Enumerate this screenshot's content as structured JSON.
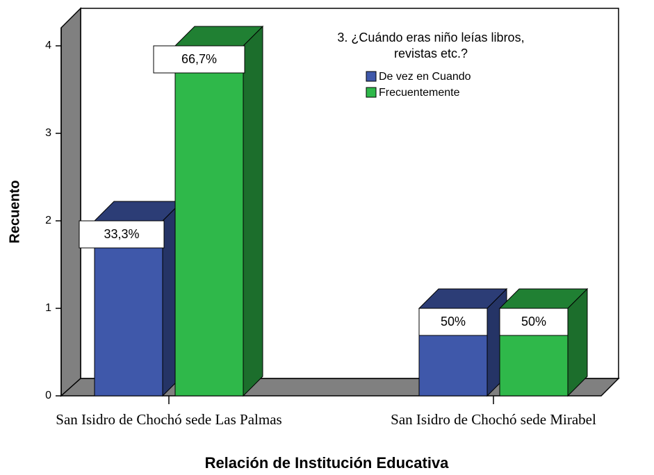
{
  "chart_data": {
    "type": "bar3d",
    "title": [
      "3. ¿Cuándo eras niño leías libros,",
      "revistas etc.?"
    ],
    "ylabel": "Recuento",
    "xlabel": "Relación de Institución Educativa",
    "categories": [
      "San Isidro de Chochó sede Las Palmas",
      "San Isidro de Chochó sede Mirabel"
    ],
    "series": [
      {
        "name": "De vez en Cuando",
        "color": "#3f58aa",
        "values": [
          2,
          1
        ],
        "percent_values": [
          33.3,
          50
        ],
        "percent_labels": [
          "33,3%",
          "50%"
        ]
      },
      {
        "name": "Frecuentemente",
        "color": "#2fb84a",
        "values": [
          4,
          1
        ],
        "percent_values": [
          66.7,
          50
        ],
        "percent_labels": [
          "66,7%",
          "50%"
        ]
      }
    ],
    "ylim": [
      0,
      4
    ],
    "yticks": [
      0,
      1,
      2,
      3,
      4
    ]
  }
}
